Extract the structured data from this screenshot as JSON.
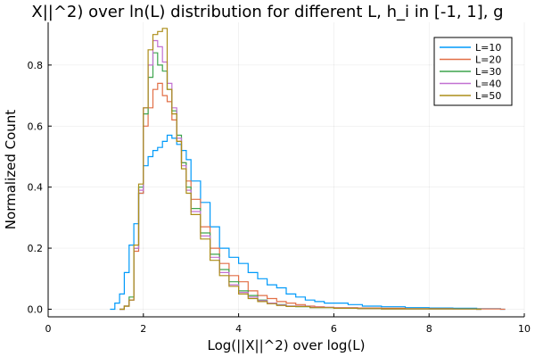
{
  "chart_data": {
    "type": "line",
    "title": "X||^2) over ln(L) distribution for different L, h_i in [-1, 1], g",
    "xlabel": "Log(||X||^2) over log(L)",
    "ylabel": "Normalized Count",
    "xlim": [
      0,
      10
    ],
    "ylim": [
      -0.025,
      0.94
    ],
    "x_ticks": [
      "0",
      "2",
      "4",
      "6",
      "8",
      "10"
    ],
    "y_ticks": [
      "0.0",
      "0.2",
      "0.4",
      "0.6",
      "0.8"
    ],
    "grid": true,
    "legend_position": "top-right",
    "bin_width": 0.1,
    "series": [
      {
        "name": "L=10",
        "color": "#009AFA",
        "x": [
          1.3,
          1.4,
          1.5,
          1.6,
          1.7,
          1.8,
          1.9,
          2.0,
          2.1,
          2.2,
          2.3,
          2.4,
          2.5,
          2.6,
          2.7,
          2.8,
          2.9,
          3.0,
          3.2,
          3.4,
          3.6,
          3.8,
          4.0,
          4.2,
          4.4,
          4.6,
          4.8,
          5.0,
          5.2,
          5.4,
          5.6,
          5.8,
          6.0,
          6.3,
          6.6,
          7.0,
          7.5,
          8.0,
          8.5,
          9.0,
          9.5
        ],
        "y": [
          0.0,
          0.02,
          0.05,
          0.12,
          0.21,
          0.28,
          0.38,
          0.47,
          0.5,
          0.52,
          0.53,
          0.55,
          0.57,
          0.56,
          0.54,
          0.52,
          0.49,
          0.42,
          0.35,
          0.27,
          0.2,
          0.17,
          0.15,
          0.12,
          0.1,
          0.08,
          0.07,
          0.05,
          0.04,
          0.03,
          0.025,
          0.02,
          0.02,
          0.015,
          0.01,
          0.008,
          0.005,
          0.004,
          0.003,
          0.002,
          0.0
        ]
      },
      {
        "name": "L=20",
        "color": "#E26F46",
        "x": [
          1.5,
          1.6,
          1.7,
          1.8,
          1.9,
          2.0,
          2.1,
          2.2,
          2.3,
          2.4,
          2.5,
          2.6,
          2.7,
          2.8,
          2.9,
          3.0,
          3.2,
          3.4,
          3.6,
          3.8,
          4.0,
          4.2,
          4.4,
          4.6,
          4.8,
          5.0,
          5.2,
          5.4,
          5.6,
          5.8,
          6.0,
          6.5,
          7.0,
          7.5,
          8.0,
          8.5,
          9.0,
          9.5
        ],
        "y": [
          0.0,
          0.01,
          0.03,
          0.19,
          0.38,
          0.6,
          0.66,
          0.72,
          0.74,
          0.7,
          0.68,
          0.62,
          0.55,
          0.48,
          0.42,
          0.36,
          0.27,
          0.2,
          0.15,
          0.11,
          0.09,
          0.06,
          0.045,
          0.035,
          0.025,
          0.02,
          0.015,
          0.01,
          0.008,
          0.006,
          0.005,
          0.004,
          0.003,
          0.002,
          0.002,
          0.001,
          0.001,
          0.0
        ]
      },
      {
        "name": "L=30",
        "color": "#3DA44D",
        "x": [
          1.5,
          1.6,
          1.7,
          1.8,
          1.9,
          2.0,
          2.1,
          2.2,
          2.3,
          2.4,
          2.5,
          2.6,
          2.7,
          2.8,
          2.9,
          3.0,
          3.2,
          3.4,
          3.6,
          3.8,
          4.0,
          4.2,
          4.4,
          4.6,
          4.8,
          5.0,
          5.2,
          5.5,
          6.0,
          6.5,
          7.0,
          8.0,
          9.0
        ],
        "y": [
          0.0,
          0.01,
          0.04,
          0.2,
          0.4,
          0.64,
          0.76,
          0.84,
          0.8,
          0.78,
          0.72,
          0.65,
          0.57,
          0.48,
          0.4,
          0.33,
          0.25,
          0.18,
          0.13,
          0.09,
          0.06,
          0.045,
          0.03,
          0.02,
          0.015,
          0.01,
          0.008,
          0.005,
          0.003,
          0.002,
          0.001,
          0.001,
          0.0
        ]
      },
      {
        "name": "L=40",
        "color": "#C271D2",
        "x": [
          1.5,
          1.6,
          1.7,
          1.8,
          1.9,
          2.0,
          2.1,
          2.2,
          2.3,
          2.4,
          2.5,
          2.6,
          2.7,
          2.8,
          2.9,
          3.0,
          3.2,
          3.4,
          3.6,
          3.8,
          4.0,
          4.2,
          4.4,
          4.6,
          4.8,
          5.0,
          5.5,
          6.0,
          6.5,
          7.0,
          8.0,
          9.0
        ],
        "y": [
          0.0,
          0.01,
          0.03,
          0.2,
          0.39,
          0.66,
          0.8,
          0.88,
          0.86,
          0.81,
          0.74,
          0.66,
          0.56,
          0.47,
          0.39,
          0.32,
          0.24,
          0.17,
          0.12,
          0.08,
          0.055,
          0.04,
          0.028,
          0.02,
          0.014,
          0.01,
          0.006,
          0.004,
          0.002,
          0.001,
          0.001,
          0.0
        ]
      },
      {
        "name": "L=50",
        "color": "#AC8D18",
        "x": [
          1.5,
          1.6,
          1.7,
          1.8,
          1.9,
          2.0,
          2.1,
          2.2,
          2.3,
          2.4,
          2.5,
          2.6,
          2.7,
          2.8,
          2.9,
          3.0,
          3.2,
          3.4,
          3.6,
          3.8,
          4.0,
          4.2,
          4.4,
          4.6,
          4.8,
          5.0,
          5.5,
          6.0,
          6.5,
          7.0,
          8.0,
          9.0
        ],
        "y": [
          0.0,
          0.01,
          0.03,
          0.21,
          0.41,
          0.66,
          0.85,
          0.9,
          0.91,
          0.92,
          0.72,
          0.64,
          0.55,
          0.46,
          0.38,
          0.31,
          0.23,
          0.16,
          0.11,
          0.075,
          0.05,
          0.035,
          0.025,
          0.018,
          0.012,
          0.009,
          0.005,
          0.003,
          0.002,
          0.001,
          0.001,
          0.0
        ]
      }
    ]
  }
}
